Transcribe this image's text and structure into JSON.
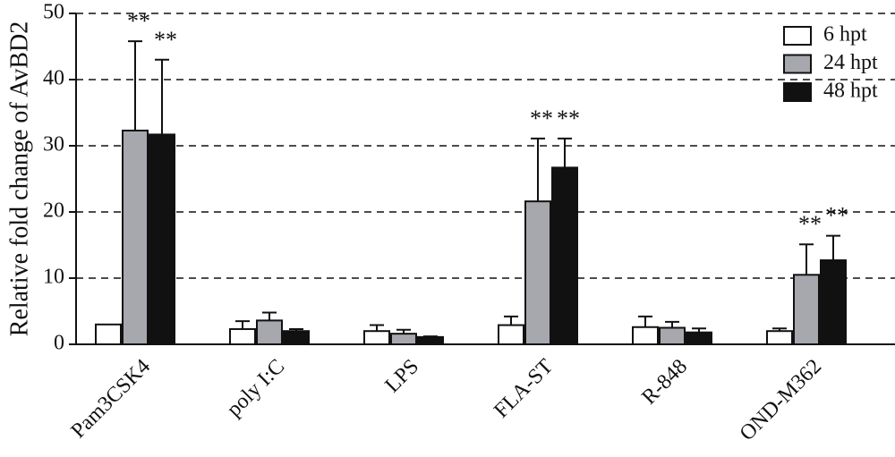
{
  "chart_data": {
    "type": "bar",
    "ylabel": "Relative fold change of AvBD2",
    "categories": [
      "Pam3CSK4",
      "poly I:C",
      "LPS",
      "FLA-ST",
      "R-848",
      "OND-M362"
    ],
    "series": [
      {
        "name": "6 hpt",
        "color": "#ffffff",
        "values": [
          3.0,
          2.3,
          2.0,
          2.9,
          2.6,
          2.0
        ],
        "errors": [
          0,
          1.2,
          0.9,
          1.3,
          1.6,
          0.4
        ],
        "annotations": [
          null,
          null,
          null,
          null,
          null,
          null
        ]
      },
      {
        "name": "24 hpt",
        "color": "#a7a7ae",
        "values": [
          32.3,
          3.6,
          1.6,
          21.6,
          2.5,
          10.5
        ],
        "errors": [
          13.5,
          1.2,
          0.6,
          9.5,
          0.9,
          4.6
        ],
        "annotations": [
          "**",
          null,
          null,
          "**",
          null,
          "**"
        ]
      },
      {
        "name": "48 hpt",
        "color": "#111111",
        "values": [
          31.7,
          2.0,
          1.1,
          26.7,
          1.8,
          12.7
        ],
        "errors": [
          11.3,
          0.3,
          0.1,
          4.4,
          0.6,
          3.7
        ],
        "annotations": [
          "**",
          null,
          null,
          "**",
          null,
          "**"
        ]
      }
    ],
    "ylim": [
      0,
      50
    ],
    "yticks": [
      0,
      10,
      20,
      30,
      40,
      50
    ],
    "grid": true,
    "legend_position": "upper right"
  }
}
